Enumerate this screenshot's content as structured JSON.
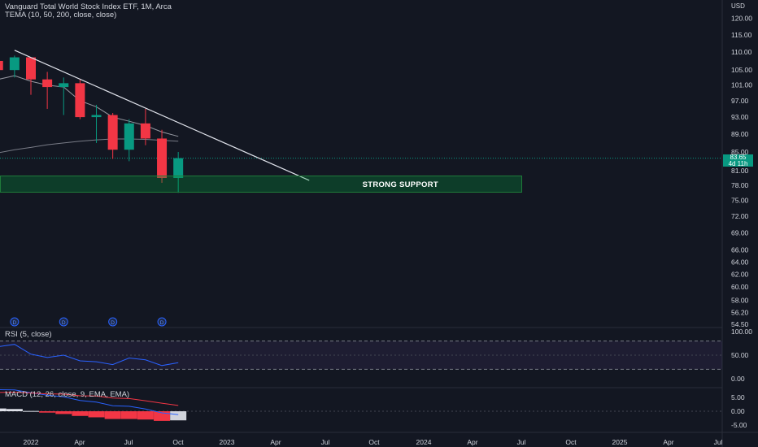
{
  "header": {
    "title": "Vanguard Total World Stock Index ETF, 1M, Arca",
    "tema_label": "TEMA (10, 50, 200, close, close)",
    "rsi_label": "RSI (5, close)",
    "macd_label": "MACD (12, 26, close, 9, EMA, EMA)"
  },
  "price_tag": {
    "price": "83.65",
    "countdown": "4d 11h"
  },
  "support_zone": {
    "label": "STRONG SUPPORT",
    "low": 76.5,
    "high": 80.2
  },
  "dividend_marker": "D",
  "colors": {
    "background": "#131722",
    "up": "#089981",
    "down": "#f23645",
    "text": "#d1d4dc",
    "rsi_line": "#2962ff",
    "macd_line": "#2962ff",
    "signal_line": "#f23645"
  },
  "chart_data": {
    "type": "candlestick",
    "title": "Vanguard Total World Stock Index ETF, 1M, Arca",
    "currency": "USD",
    "price_axis_scale": "log",
    "price_ticks": [
      "120.00",
      "115.00",
      "110.00",
      "105.00",
      "101.00",
      "97.00",
      "93.00",
      "89.00",
      "85.00",
      "81.00",
      "78.00",
      "75.00",
      "72.00",
      "69.00",
      "66.00",
      "64.00",
      "62.00",
      "60.00",
      "58.00",
      "56.20",
      "54.50"
    ],
    "time_ticks": [
      "2022",
      "Apr",
      "Jul",
      "Oct",
      "2023",
      "Apr",
      "Jul",
      "Oct",
      "2024",
      "Apr",
      "Jul",
      "Oct",
      "2025",
      "Apr",
      "Jul"
    ],
    "candles": [
      {
        "date": "2021-10",
        "open": 105.5,
        "high": 109.5,
        "low": 104.0,
        "close": 107.5
      },
      {
        "date": "2021-11",
        "open": 107.5,
        "high": 108.5,
        "low": 104.0,
        "close": 105.0
      },
      {
        "date": "2021-12",
        "open": 105.0,
        "high": 109.0,
        "low": 103.0,
        "close": 108.5
      },
      {
        "date": "2022-01",
        "open": 108.5,
        "high": 108.5,
        "low": 98.5,
        "close": 102.5
      },
      {
        "date": "2022-02",
        "open": 102.5,
        "high": 104.5,
        "low": 95.0,
        "close": 100.5
      },
      {
        "date": "2022-03",
        "open": 100.5,
        "high": 103.0,
        "low": 93.5,
        "close": 101.5
      },
      {
        "date": "2022-04",
        "open": 101.5,
        "high": 102.5,
        "low": 92.5,
        "close": 93.0
      },
      {
        "date": "2022-05",
        "open": 93.0,
        "high": 96.0,
        "low": 87.0,
        "close": 93.5
      },
      {
        "date": "2022-06",
        "open": 93.5,
        "high": 94.0,
        "low": 83.5,
        "close": 85.5
      },
      {
        "date": "2022-07",
        "open": 85.5,
        "high": 92.5,
        "low": 83.0,
        "close": 91.5
      },
      {
        "date": "2022-08",
        "open": 91.5,
        "high": 95.0,
        "low": 86.5,
        "close": 88.0
      },
      {
        "date": "2022-09",
        "open": 88.0,
        "high": 90.0,
        "low": 78.5,
        "close": 79.5
      },
      {
        "date": "2022-10",
        "open": 79.5,
        "high": 85.0,
        "low": 76.5,
        "close": 83.65
      }
    ],
    "tema": [
      {
        "name": "TEMA 10",
        "values": [
          103.0,
          102.5,
          103.5,
          102.0,
          101.0,
          100.5,
          97.0,
          95.5,
          93.0,
          92.0,
          91.0,
          89.5,
          88.5
        ]
      },
      {
        "name": "TEMA 50",
        "values": [
          84.0,
          84.8,
          85.5,
          86.0,
          86.6,
          87.0,
          87.4,
          87.7,
          87.9,
          87.9,
          87.8,
          87.6,
          87.4
        ]
      }
    ],
    "trendline": [
      {
        "date": "2021-12",
        "price": 110.5
      },
      {
        "date": "2023-06",
        "price": 79.0
      }
    ],
    "dividends": [
      "2021-12",
      "2022-03",
      "2022-06",
      "2022-09"
    ],
    "rsi": {
      "ticks": [
        "100.00",
        "50.00",
        "0.00"
      ],
      "upper": 80,
      "lower": 20,
      "values": [
        72,
        68,
        73,
        52,
        45,
        50,
        38,
        36,
        30,
        44,
        40,
        28,
        34
      ]
    },
    "macd": {
      "ticks": [
        "5.00",
        "0.00",
        "-5.00"
      ],
      "histogram": [
        1.4,
        1.0,
        0.8,
        0.1,
        -0.5,
        -1.0,
        -1.7,
        -2.2,
        -2.8,
        -2.8,
        -3.0,
        -3.5,
        -3.3
      ],
      "macd_line": [
        8.0,
        7.8,
        7.7,
        6.7,
        5.8,
        5.2,
        3.9,
        3.3,
        2.0,
        1.8,
        0.8,
        -0.6,
        -1.2
      ],
      "signal_line": [
        6.6,
        6.8,
        6.9,
        6.6,
        6.3,
        6.2,
        5.6,
        5.5,
        4.8,
        4.6,
        3.8,
        2.9,
        2.1
      ]
    }
  }
}
